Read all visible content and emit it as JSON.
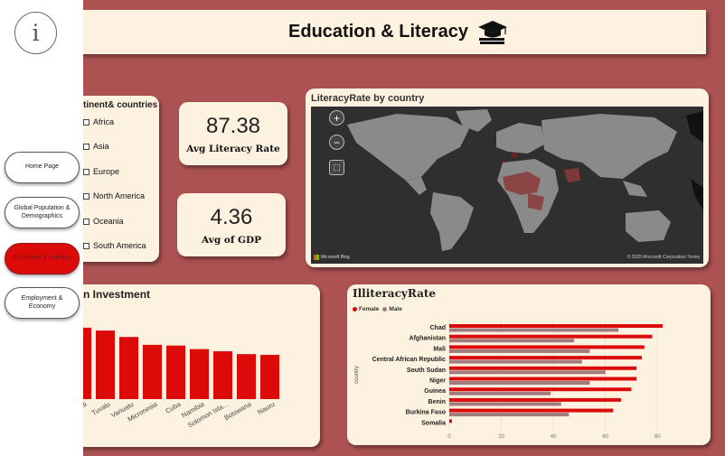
{
  "header": {
    "title": "Education & Literacy",
    "icon": "graduation-cap-icon"
  },
  "sidebar": {
    "info_icon": "info-icon",
    "items": [
      {
        "label": "Home Page",
        "active": false
      },
      {
        "label": "Global Population & Demographics",
        "active": false
      },
      {
        "label": "Education & Literacy",
        "active": true
      },
      {
        "label": "Employment & Economy",
        "active": false
      }
    ]
  },
  "slicer": {
    "title": "tinent& countries",
    "options": [
      "Africa",
      "Asia",
      "Europe",
      "North America",
      "Oceania",
      "South America"
    ]
  },
  "kpis": {
    "literacy": {
      "value": "87.38",
      "label": "Avg Literacy Rate"
    },
    "gdp": {
      "value": "4.36",
      "label": "Avg of GDP"
    }
  },
  "map": {
    "title": "LiteracyRate by country",
    "zoom_in": "+",
    "zoom_out": "−",
    "brand": "Microsoft Bing",
    "copyright": "© 2025 Microsoft Corporation Terms"
  },
  "investment": {
    "title": "n Investment"
  },
  "illiteracy": {
    "title": "IlliteracyRate"
  },
  "colors": {
    "accent": "#dd0a0a",
    "male": "#a27c7c",
    "background": "#ad5252",
    "card": "#fdf1e0"
  },
  "chart_data": [
    {
      "type": "bar",
      "title": "n Investment",
      "categories": [
        "ribati",
        "Tuvalu",
        "Vanuatu",
        "Micronesia",
        "Cuba",
        "Namibia",
        "Solomon Isla...",
        "Botswana",
        "Nauru"
      ],
      "values": [
        100,
        96,
        87,
        76,
        75,
        70,
        67,
        63,
        62
      ],
      "ylim": [
        0,
        110
      ]
    },
    {
      "type": "bar",
      "orientation": "horizontal",
      "title": "IlliteracyRate",
      "ylabel": "country",
      "categories": [
        "Chad",
        "Afghanistan",
        "Mali",
        "Central African Republic",
        "South Sudan",
        "Niger",
        "Guinea",
        "Benin",
        "Burkina Faso",
        "Somalia"
      ],
      "series": [
        {
          "name": "Female",
          "values": [
            82,
            78,
            75,
            74,
            72,
            72,
            70,
            66,
            63,
            1
          ]
        },
        {
          "name": "Male",
          "values": [
            65,
            48,
            54,
            51,
            60,
            54,
            39,
            43,
            46,
            0
          ]
        }
      ],
      "xlim": [
        0,
        90
      ],
      "xticks": [
        0,
        20,
        40,
        60,
        80
      ]
    }
  ]
}
